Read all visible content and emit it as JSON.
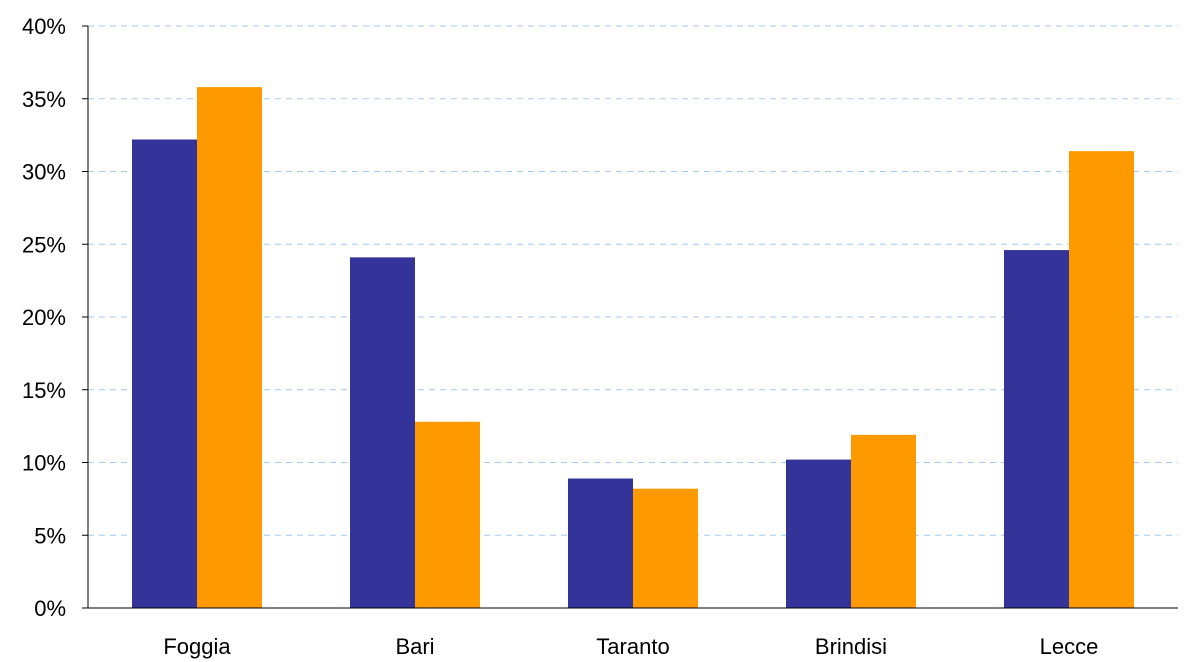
{
  "chart_data": {
    "type": "bar",
    "categories": [
      "Foggia",
      "Bari",
      "Taranto",
      "Brindisi",
      "Lecce"
    ],
    "series": [
      {
        "values": [
          32.2,
          24.1,
          8.9,
          10.2,
          24.6
        ],
        "color": "#333399"
      },
      {
        "values": [
          35.8,
          12.8,
          8.2,
          11.9,
          31.4
        ],
        "color": "#FF9900"
      }
    ],
    "y_ticks": [
      "0%",
      "5%",
      "10%",
      "15%",
      "20%",
      "25%",
      "30%",
      "35%",
      "40%"
    ],
    "ylim": [
      0,
      40
    ],
    "y_step": 5,
    "grid": true,
    "grid_color": "#A6CAF0",
    "axis_color": "#000000"
  }
}
